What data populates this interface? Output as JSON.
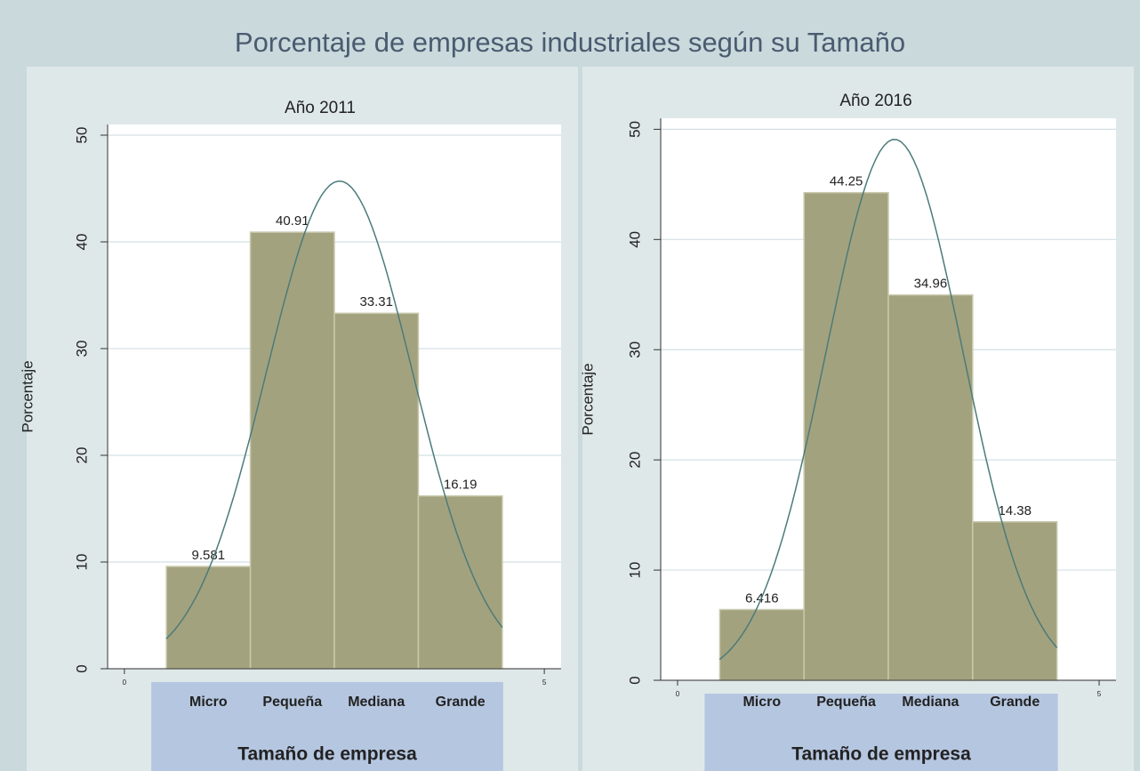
{
  "title": "Porcentaje de empresas industriales según su Tamaño",
  "chart_data": [
    {
      "type": "histogram",
      "title": "Año 2011",
      "y_label": "Porcentaje",
      "x_label": "Tamaño de empresa",
      "categories": [
        "Micro",
        "Pequeña",
        "Mediana",
        "Grande"
      ],
      "bins": [
        0.5,
        1.5,
        2.5,
        3.5,
        4.5
      ],
      "values": [
        9.581,
        40.91,
        33.31,
        16.19
      ],
      "color": "#a3a27e",
      "curve_color": "#4b7b7b",
      "xlim": [
        -0.2,
        5.2
      ],
      "xticks": [
        0,
        5
      ],
      "ylim": [
        0,
        51
      ],
      "yticks": [
        0,
        10,
        20,
        30,
        40,
        50
      ],
      "grid": true
    },
    {
      "type": "histogram",
      "title": "Año 2016",
      "y_label": "Porcentaje",
      "x_label": "Tamaño de empresa",
      "categories": [
        "Micro",
        "Pequeña",
        "Mediana",
        "Grande"
      ],
      "bins": [
        0.5,
        1.5,
        2.5,
        3.5,
        4.5
      ],
      "values": [
        6.416,
        44.25,
        34.96,
        14.38
      ],
      "color": "#a3a27e",
      "curve_color": "#4b7b7b",
      "xlim": [
        -0.2,
        5.2
      ],
      "xticks": [
        0,
        5
      ],
      "ylim": [
        0,
        51
      ],
      "yticks": [
        0,
        10,
        20,
        30,
        40,
        50
      ],
      "grid": true
    }
  ]
}
